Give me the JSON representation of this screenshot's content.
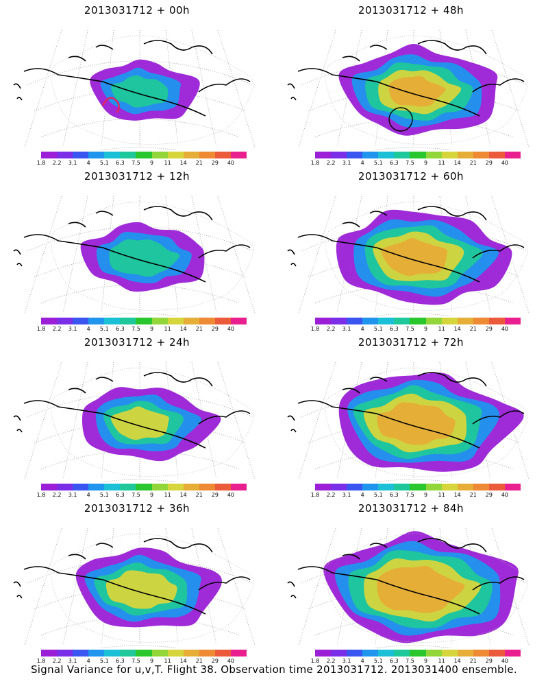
{
  "caption": "Signal Variance for u,v,T. Flight 38. Observation time 2013031712. 2013031400 ensemble.",
  "colorbar": {
    "labels": [
      "1.8",
      "2.2",
      "3.1",
      "4",
      "5.1",
      "6.3",
      "7.5",
      "9",
      "11",
      "14",
      "21",
      "29",
      "40"
    ],
    "colors": [
      "#9a1fd6",
      "#7a2ee8",
      "#3a55f0",
      "#1f95ee",
      "#1cc0d6",
      "#1ec89a",
      "#29c72d",
      "#93d63a",
      "#d6d63c",
      "#e6ad37",
      "#ee8a33",
      "#ec5a3c",
      "#ea1f8f"
    ]
  },
  "panels": [
    {
      "title": "2013031712 + 00h",
      "intensity": 0,
      "marker": "red-arc"
    },
    {
      "title": "2013031712 + 48h",
      "intensity": 4,
      "marker": "black-circle"
    },
    {
      "title": "2013031712 + 12h",
      "intensity": 1,
      "marker": null
    },
    {
      "title": "2013031712 + 60h",
      "intensity": 5,
      "marker": null
    },
    {
      "title": "2013031712 + 24h",
      "intensity": 2,
      "marker": null
    },
    {
      "title": "2013031712 + 72h",
      "intensity": 6,
      "marker": null
    },
    {
      "title": "2013031712 + 36h",
      "intensity": 3,
      "marker": null
    },
    {
      "title": "2013031712 + 84h",
      "intensity": 7,
      "marker": null
    }
  ]
}
